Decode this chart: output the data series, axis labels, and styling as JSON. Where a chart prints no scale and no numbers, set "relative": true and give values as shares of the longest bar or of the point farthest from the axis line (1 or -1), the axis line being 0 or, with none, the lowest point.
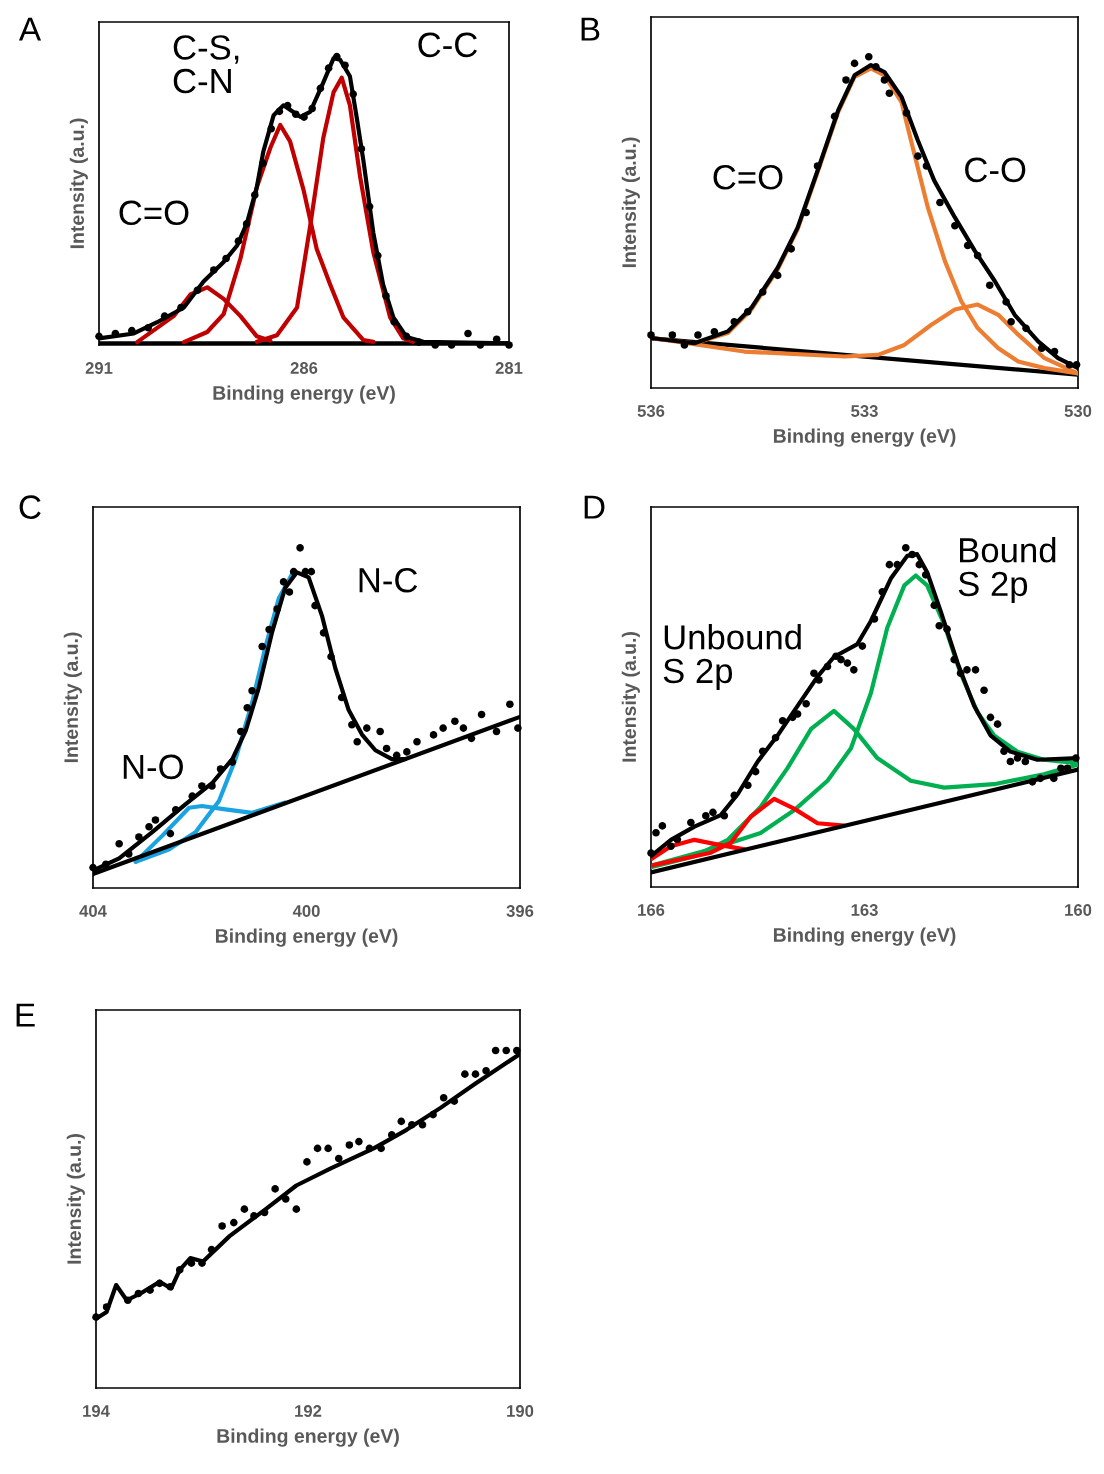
{
  "chart_data": [
    {
      "type": "line",
      "title": "A",
      "xlabel": "Binding energy (eV)",
      "ylabel": "Intensity (a.u.)",
      "relative": true,
      "xlim": [
        291,
        281
      ],
      "xticks": [
        291,
        286,
        281
      ],
      "series": [
        {
          "color": "#000000",
          "x": [
            291,
            281
          ],
          "values": [
            0.006,
            0.006
          ]
        },
        {
          "color": "#c00000",
          "x": [
            290.07,
            289.18,
            288.77,
            288.36,
            287.96,
            287.55,
            287.15,
            286.82
          ],
          "values": [
            0.01,
            0.1,
            0.175,
            0.2,
            0.16,
            0.1,
            0.03,
            0.015
          ]
        },
        {
          "color": "#c00000",
          "x": [
            288.93,
            288.36,
            287.96,
            287.55,
            287.15,
            286.82,
            286.58,
            286.34,
            286.01,
            285.69,
            285.36,
            285.04,
            284.55,
            284.31
          ],
          "values": [
            0.01,
            0.045,
            0.107,
            0.3,
            0.548,
            0.684,
            0.763,
            0.706,
            0.537,
            0.333,
            0.209,
            0.096,
            0.017,
            0.011
          ]
        },
        {
          "color": "#c00000",
          "x": [
            287.15,
            286.66,
            286.17,
            285.85,
            285.53,
            285.28,
            285.08,
            284.88,
            284.63,
            284.31,
            283.9,
            283.58,
            283.34
          ],
          "values": [
            0.011,
            0.034,
            0.13,
            0.412,
            0.718,
            0.876,
            0.927,
            0.831,
            0.582,
            0.322,
            0.096,
            0.023,
            0.011
          ]
        },
        {
          "color": "#000000",
          "x": [
            291,
            290.15,
            289.58,
            288.93,
            288.45,
            287.96,
            287.63,
            287.39,
            287.15,
            286.99,
            286.74,
            286.5,
            286.26,
            286.09,
            285.85,
            285.53,
            285.28,
            285.12,
            284.88,
            284.71,
            284.55,
            284.31,
            284.07,
            283.82,
            283.5,
            283.09,
            281
          ],
          "values": [
            0.023,
            0.04,
            0.079,
            0.13,
            0.22,
            0.288,
            0.345,
            0.424,
            0.548,
            0.672,
            0.797,
            0.831,
            0.808,
            0.791,
            0.808,
            0.91,
            0.994,
            0.989,
            0.932,
            0.785,
            0.638,
            0.39,
            0.209,
            0.096,
            0.028,
            0.011,
            0.006
          ]
        },
        {
          "type": "scatter",
          "color": "#000000",
          "x": [
            291.0,
            290.6,
            290.2,
            289.8,
            289.4,
            289.0,
            288.6,
            288.2,
            287.9,
            287.6,
            287.4,
            287.2,
            287.0,
            286.8,
            286.6,
            286.4,
            286.2,
            286.0,
            285.8,
            285.6,
            285.4,
            285.2,
            285.0,
            284.8,
            284.6,
            284.4,
            284.2,
            284.0,
            283.8,
            283.5,
            283.2,
            282.8,
            282.4,
            282.0,
            281.7,
            281.3,
            281.0
          ],
          "values": [
            0.03,
            0.04,
            0.05,
            0.06,
            0.1,
            0.13,
            0.19,
            0.26,
            0.3,
            0.36,
            0.42,
            0.52,
            0.63,
            0.75,
            0.81,
            0.83,
            0.8,
            0.79,
            0.82,
            0.89,
            0.96,
            1.0,
            0.97,
            0.87,
            0.68,
            0.48,
            0.31,
            0.17,
            0.08,
            0.03,
            0.01,
            0.0,
            0.0,
            0.04,
            0.0,
            0.02,
            0.0
          ]
        }
      ],
      "annotations": [
        "C=O",
        "C-S,\nC-N",
        "C-C"
      ]
    },
    {
      "type": "line",
      "title": "B",
      "xlabel": "Binding energy (eV)",
      "ylabel": "Intensity (a.u.)",
      "relative": true,
      "xlim": [
        536,
        530
      ],
      "xticks": [
        536,
        533,
        530
      ],
      "series": [
        {
          "color": "#000000",
          "x": [
            536,
            530
          ],
          "values": [
            0.15,
            0.04
          ]
        },
        {
          "color": "#ed7d31",
          "x": [
            536,
            535.39,
            534.92,
            534.59,
            534.22,
            533.94,
            533.66,
            533.37,
            533.14,
            532.91,
            532.72,
            532.48,
            532.3,
            532.11,
            531.87,
            531.64,
            531.41,
            531.12,
            530.84,
            530.47,
            530.0
          ],
          "values": [
            0.151,
            0.135,
            0.166,
            0.237,
            0.358,
            0.479,
            0.651,
            0.833,
            0.939,
            0.965,
            0.944,
            0.863,
            0.707,
            0.545,
            0.383,
            0.262,
            0.181,
            0.12,
            0.08,
            0.06,
            0.044
          ]
        },
        {
          "color": "#ed7d31",
          "x": [
            536,
            534.69,
            533.28,
            532.81,
            532.44,
            532.06,
            531.73,
            531.41,
            531.12,
            530.84,
            530.47,
            530.0
          ],
          "values": [
            0.151,
            0.11,
            0.095,
            0.1,
            0.13,
            0.191,
            0.237,
            0.252,
            0.221,
            0.161,
            0.09,
            0.044
          ]
        },
        {
          "color": "#000000",
          "x": [
            536,
            535.39,
            534.92,
            534.59,
            534.22,
            533.94,
            533.66,
            533.37,
            533.14,
            532.91,
            532.72,
            532.48,
            532.25,
            532.02,
            531.73,
            531.45,
            531.17,
            530.89,
            530.56,
            530.28,
            530.0
          ],
          "values": [
            0.151,
            0.135,
            0.171,
            0.242,
            0.363,
            0.484,
            0.656,
            0.838,
            0.944,
            0.975,
            0.954,
            0.879,
            0.747,
            0.626,
            0.515,
            0.414,
            0.323,
            0.221,
            0.141,
            0.09,
            0.06
          ]
        },
        {
          "type": "scatter",
          "color": "#000000",
          "x": [
            536.0,
            535.7,
            535.53,
            535.34,
            535.11,
            534.83,
            534.64,
            534.43,
            534.22,
            534.03,
            533.82,
            533.66,
            533.42,
            533.26,
            533.14,
            532.94,
            532.84,
            532.72,
            532.65,
            532.41,
            532.25,
            532.13,
            531.94,
            531.73,
            531.55,
            531.41,
            531.24,
            531.01,
            530.94,
            530.73,
            530.51,
            530.33,
            530.12,
            530.02
          ],
          "values": [
            0.16,
            0.16,
            0.13,
            0.16,
            0.17,
            0.2,
            0.23,
            0.29,
            0.34,
            0.42,
            0.53,
            0.67,
            0.82,
            0.93,
            0.98,
            1.0,
            0.97,
            0.93,
            0.89,
            0.83,
            0.7,
            0.67,
            0.56,
            0.49,
            0.43,
            0.4,
            0.31,
            0.26,
            0.2,
            0.18,
            0.12,
            0.11,
            0.07,
            0.07
          ]
        }
      ],
      "annotations": [
        "C=O",
        "C-O"
      ]
    },
    {
      "type": "line",
      "title": "C",
      "xlabel": "Binding energy (eV)",
      "ylabel": "Intensity (a.u.)",
      "relative": true,
      "xlim": [
        404,
        396
      ],
      "xticks": [
        404,
        400,
        396
      ],
      "series": [
        {
          "color": "#1aa3e0",
          "x": [
            403.2,
            402.58,
            402.08,
            401.64,
            401.33,
            401.02,
            400.77,
            400.52,
            400.27
          ],
          "values": [
            0.077,
            0.113,
            0.164,
            0.256,
            0.379,
            0.544,
            0.708,
            0.851,
            0.923
          ]
        },
        {
          "color": "#1aa3e0",
          "x": [
            403.2,
            402.7,
            402.2,
            401.96,
            401.52,
            401.02,
            400.4
          ],
          "values": [
            0.077,
            0.154,
            0.236,
            0.241,
            0.231,
            0.221,
            0.251
          ]
        },
        {
          "color": "#000000",
          "x": [
            404,
            396
          ],
          "values": [
            0.041,
            0.503
          ]
        },
        {
          "color": "#000000",
          "x": [
            404,
            403.51,
            402.89,
            402.27,
            401.77,
            401.39,
            401.14,
            400.9,
            400.65,
            400.4,
            400.18,
            399.96,
            399.71,
            399.46,
            399.21,
            398.96,
            398.71,
            398.4,
            398.15
          ],
          "values": [
            0.051,
            0.087,
            0.164,
            0.246,
            0.308,
            0.379,
            0.462,
            0.585,
            0.749,
            0.882,
            0.928,
            0.913,
            0.8,
            0.646,
            0.523,
            0.451,
            0.405,
            0.379,
            0.379
          ]
        },
        {
          "type": "scatter",
          "color": "#000000",
          "x": [
            404.0,
            403.76,
            403.51,
            403.33,
            403.14,
            402.95,
            402.83,
            402.55,
            402.45,
            402.14,
            401.96,
            401.77,
            401.61,
            401.39,
            401.23,
            401.11,
            401.02,
            400.83,
            400.7,
            400.55,
            400.43,
            400.32,
            400.24,
            400.12,
            400.02,
            399.91,
            399.84,
            399.68,
            399.54,
            399.34,
            399.15,
            399.05,
            398.87,
            398.62,
            398.5,
            398.31,
            398.12,
            397.93,
            397.62,
            397.44,
            397.22,
            397.06,
            396.91,
            396.72,
            396.44,
            396.19,
            396.04
          ],
          "values": [
            0.06,
            0.07,
            0.13,
            0.1,
            0.15,
            0.18,
            0.2,
            0.16,
            0.23,
            0.27,
            0.3,
            0.3,
            0.35,
            0.37,
            0.46,
            0.53,
            0.58,
            0.71,
            0.76,
            0.82,
            0.9,
            0.87,
            0.93,
            1.0,
            0.93,
            0.93,
            0.83,
            0.75,
            0.68,
            0.56,
            0.48,
            0.43,
            0.47,
            0.46,
            0.41,
            0.39,
            0.4,
            0.43,
            0.45,
            0.47,
            0.49,
            0.47,
            0.44,
            0.51,
            0.46,
            0.54,
            0.47
          ]
        }
      ],
      "annotations": [
        "N-O",
        "N-C"
      ]
    },
    {
      "type": "line",
      "title": "D",
      "xlabel": "Binding energy (eV)",
      "ylabel": "Intensity (a.u.)",
      "relative": true,
      "xlim": [
        166,
        160
      ],
      "xticks": [
        166,
        163,
        160
      ],
      "series": [
        {
          "color": "#00b050",
          "x": [
            166,
            165.16,
            164.46,
            163.99,
            163.52,
            163.19,
            162.91,
            162.68,
            162.44,
            162.28,
            162.12,
            161.88,
            161.65,
            161.41,
            161.18,
            160.85,
            160.48,
            160.0
          ],
          "values": [
            0.063,
            0.111,
            0.159,
            0.226,
            0.313,
            0.409,
            0.572,
            0.764,
            0.889,
            0.918,
            0.889,
            0.774,
            0.63,
            0.514,
            0.447,
            0.399,
            0.375,
            0.365
          ]
        },
        {
          "color": "#00b050",
          "x": [
            166,
            165.39,
            164.92,
            164.46,
            164.08,
            163.75,
            163.43,
            163.15,
            162.82,
            162.35,
            161.88,
            161.18,
            160.48,
            160.0
          ],
          "values": [
            0.058,
            0.091,
            0.139,
            0.236,
            0.351,
            0.466,
            0.519,
            0.466,
            0.38,
            0.313,
            0.293,
            0.303,
            0.332,
            0.361
          ]
        },
        {
          "color": "#ff0000",
          "x": [
            166,
            165.72,
            165.39,
            165.06,
            164.69
          ],
          "values": [
            0.082,
            0.12,
            0.139,
            0.125,
            0.111
          ]
        },
        {
          "color": "#ff0000",
          "x": [
            166,
            165.16,
            164.88,
            164.6,
            164.27,
            163.99,
            163.66,
            163.29
          ],
          "values": [
            0.063,
            0.101,
            0.13,
            0.207,
            0.26,
            0.231,
            0.188,
            0.181
          ]
        },
        {
          "color": "#000000",
          "x": [
            166,
            160
          ],
          "values": [
            0.043,
            0.346
          ]
        },
        {
          "color": "#000000",
          "x": [
            166,
            165.72,
            165.39,
            165.02,
            164.78,
            164.5,
            164.22,
            163.94,
            163.66,
            163.43,
            163.1,
            162.91,
            162.63,
            162.4,
            162.26,
            162.12,
            161.93,
            161.69,
            161.46,
            161.23,
            160.95,
            160.57,
            160.0
          ],
          "values": [
            0.091,
            0.139,
            0.178,
            0.212,
            0.274,
            0.37,
            0.447,
            0.534,
            0.62,
            0.678,
            0.716,
            0.784,
            0.909,
            0.976,
            0.981,
            0.928,
            0.813,
            0.659,
            0.534,
            0.447,
            0.399,
            0.375,
            0.38
          ]
        },
        {
          "type": "scatter",
          "color": "#000000",
          "x": [
            166.0,
            165.93,
            165.84,
            165.72,
            165.63,
            165.44,
            165.23,
            165.13,
            164.97,
            164.83,
            164.64,
            164.53,
            164.43,
            164.25,
            164.15,
            164.01,
            163.94,
            163.82,
            163.71,
            163.64,
            163.52,
            163.4,
            163.33,
            163.24,
            163.15,
            163.03,
            162.86,
            162.75,
            162.65,
            162.54,
            162.42,
            162.33,
            162.23,
            162.14,
            162.02,
            161.95,
            161.84,
            161.74,
            161.65,
            161.56,
            161.44,
            161.32,
            161.23,
            161.13,
            161.04,
            160.95,
            160.85,
            160.74,
            160.64,
            160.53,
            160.34,
            160.24,
            160.15,
            160.03
          ],
          "values": [
            0.1,
            0.16,
            0.18,
            0.12,
            0.14,
            0.19,
            0.21,
            0.22,
            0.21,
            0.27,
            0.3,
            0.34,
            0.4,
            0.44,
            0.49,
            0.5,
            0.51,
            0.54,
            0.63,
            0.61,
            0.65,
            0.68,
            0.67,
            0.66,
            0.64,
            0.71,
            0.79,
            0.87,
            0.95,
            0.95,
            1.0,
            0.98,
            0.95,
            0.92,
            0.83,
            0.77,
            0.76,
            0.67,
            0.63,
            0.64,
            0.64,
            0.58,
            0.5,
            0.48,
            0.4,
            0.37,
            0.38,
            0.37,
            0.31,
            0.32,
            0.32,
            0.35,
            0.35,
            0.38
          ]
        }
      ],
      "annotations": [
        "Unbound\nS 2p",
        "Bound\nS 2p"
      ]
    },
    {
      "type": "line",
      "title": "E",
      "xlabel": "Binding energy (eV)",
      "ylabel": "Intensity (a.u.)",
      "relative": true,
      "xlim": [
        194,
        190
      ],
      "xticks": [
        194,
        192,
        190
      ],
      "series": [
        {
          "color": "#000000",
          "x": [
            194,
            193.9,
            193.81,
            193.71,
            193.58,
            193.4,
            193.29,
            193.21,
            193.11,
            192.99,
            192.74,
            192.42,
            192.11,
            191.79,
            191.38,
            191.07,
            190.75,
            190.43,
            190.0
          ],
          "values": [
            0.205,
            0.225,
            0.305,
            0.26,
            0.28,
            0.315,
            0.295,
            0.35,
            0.385,
            0.375,
            0.45,
            0.525,
            0.6,
            0.65,
            0.71,
            0.765,
            0.83,
            0.9,
            0.99
          ]
        },
        {
          "type": "scatter",
          "color": "#000000",
          "x": [
            194.0,
            193.9,
            193.7,
            193.6,
            193.49,
            193.4,
            193.3,
            193.21,
            193.1,
            193.0,
            192.91,
            192.81,
            192.7,
            192.6,
            192.51,
            192.41,
            192.31,
            192.21,
            192.11,
            192.01,
            191.91,
            191.81,
            191.71,
            191.61,
            191.52,
            191.42,
            191.31,
            191.21,
            191.12,
            191.02,
            190.92,
            190.82,
            190.72,
            190.62,
            190.52,
            190.42,
            190.32,
            190.23,
            190.13,
            190.03
          ],
          "values": [
            0.21,
            0.24,
            0.26,
            0.28,
            0.29,
            0.31,
            0.3,
            0.35,
            0.37,
            0.37,
            0.41,
            0.48,
            0.49,
            0.53,
            0.51,
            0.52,
            0.59,
            0.56,
            0.53,
            0.67,
            0.71,
            0.71,
            0.68,
            0.72,
            0.73,
            0.71,
            0.71,
            0.75,
            0.79,
            0.78,
            0.78,
            0.81,
            0.86,
            0.85,
            0.93,
            0.93,
            0.94,
            1.0,
            1.0,
            1.0
          ]
        }
      ]
    }
  ]
}
